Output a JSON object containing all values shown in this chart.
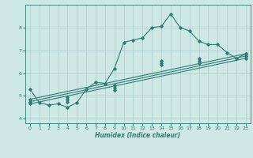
{
  "xlabel": "Humidex (Indice chaleur)",
  "bg_color": "#cde8e5",
  "line_color": "#2e7d72",
  "grid_color": "#aacccc",
  "xlim": [
    -0.5,
    23.5
  ],
  "ylim": [
    3.8,
    9.0
  ],
  "yticks": [
    4,
    5,
    6,
    7,
    8
  ],
  "xticks": [
    0,
    1,
    2,
    3,
    4,
    5,
    6,
    7,
    8,
    9,
    10,
    11,
    12,
    13,
    14,
    15,
    16,
    17,
    18,
    19,
    20,
    21,
    22,
    23
  ],
  "line1_x": [
    0,
    1,
    2,
    3,
    4,
    5,
    6,
    7,
    8,
    9,
    10,
    11,
    12,
    13,
    14,
    15,
    16,
    17,
    18,
    19,
    20,
    21,
    22,
    23
  ],
  "line1_y": [
    5.3,
    4.7,
    4.6,
    4.65,
    4.5,
    4.7,
    5.3,
    5.6,
    5.55,
    6.2,
    7.35,
    7.45,
    7.55,
    8.0,
    8.05,
    8.6,
    8.0,
    7.85,
    7.4,
    7.25,
    7.25,
    6.9,
    6.65,
    6.85
  ],
  "line2_x": [
    0,
    23
  ],
  "line2_y": [
    4.85,
    6.85
  ],
  "line3_x": [
    0,
    23
  ],
  "line3_y": [
    4.75,
    6.75
  ],
  "line4_x": [
    0,
    23
  ],
  "line4_y": [
    4.65,
    6.65
  ],
  "marker_x2": [
    0,
    4,
    9,
    14,
    18,
    23
  ],
  "marker_y2": [
    4.85,
    4.95,
    5.45,
    6.55,
    6.65,
    6.85
  ],
  "marker_x3": [
    0,
    4,
    9,
    14,
    18,
    23
  ],
  "marker_y3": [
    4.75,
    4.85,
    5.35,
    6.45,
    6.55,
    6.75
  ],
  "marker_x4": [
    0,
    4,
    9,
    14,
    18,
    23
  ],
  "marker_y4": [
    4.65,
    4.75,
    5.25,
    6.35,
    6.45,
    6.65
  ]
}
